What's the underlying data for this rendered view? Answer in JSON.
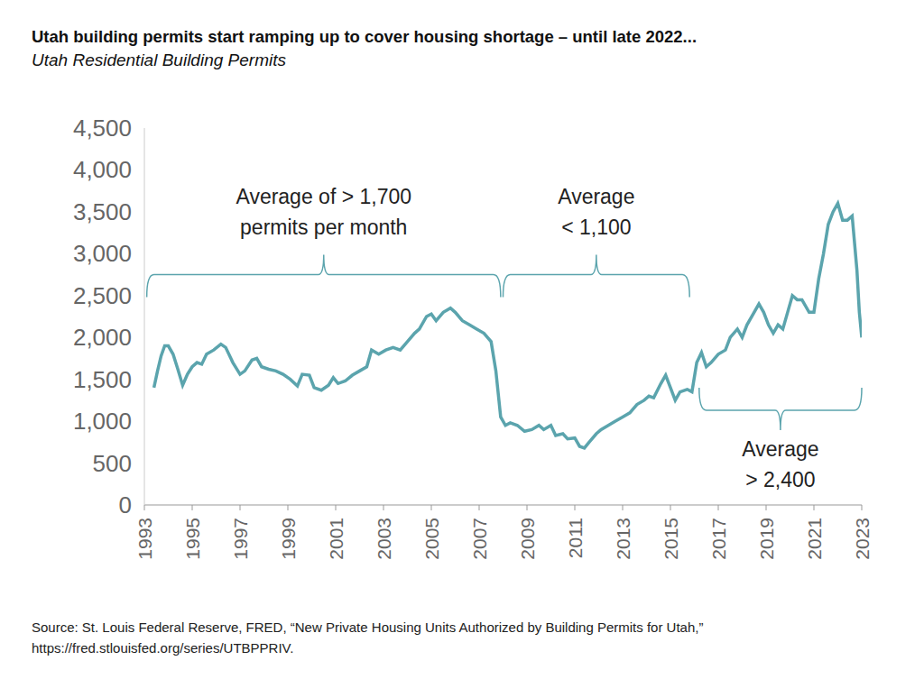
{
  "chart_data": {
    "type": "line",
    "title": "Utah building permits start ramping up to cover housing shortage – until late 2022...",
    "subtitle": "Utah Residential Building Permits",
    "source": [
      "Source: St. Louis Federal Reserve, FRED, “New Private Housing Units Authorized by Building Permits for Utah,”",
      "https://fred.stlouisfed.org/series/UTBPPRIV."
    ],
    "color": "#5ba4ad",
    "grid": false,
    "xlim": [
      1993,
      2023
    ],
    "xticks": [
      1993,
      1995,
      1997,
      1999,
      2001,
      2003,
      2005,
      2007,
      2009,
      2011,
      2013,
      2015,
      2017,
      2019,
      2021,
      2023
    ],
    "ylim": [
      0,
      4500
    ],
    "yticks": [
      0,
      500,
      {
        "value": 1000,
        "label": "1,000"
      },
      {
        "value": 1500,
        "label": "1,500"
      },
      {
        "value": 2000,
        "label": "2,000"
      },
      {
        "value": 2500,
        "label": "2,500"
      },
      {
        "value": 3000,
        "label": "3,000"
      },
      {
        "value": 3500,
        "label": "3,500"
      },
      {
        "value": 4000,
        "label": "4,000"
      },
      {
        "value": 4500,
        "label": "4,500"
      }
    ],
    "annotations": [
      {
        "text": [
          "Average of > 1,700",
          "permits per month"
        ],
        "x": [
          1993.1,
          2007.9
        ],
        "y": 2750
      },
      {
        "text": [
          "Average",
          "< 1,100"
        ],
        "x": [
          2008.0,
          2015.8
        ],
        "y": 2750
      },
      {
        "text": [
          "Average",
          "> 2,400"
        ],
        "x": [
          2016.2,
          2023
        ],
        "y": 1130
      }
    ],
    "x": [
      1993.4,
      1993.55,
      1993.7,
      1993.85,
      1994.0,
      1994.2,
      1994.4,
      1994.6,
      1994.8,
      1995.0,
      1995.2,
      1995.4,
      1995.6,
      1995.9,
      1996.2,
      1996.4,
      1996.7,
      1997.0,
      1997.2,
      1997.5,
      1997.7,
      1997.9,
      1998.2,
      1998.5,
      1998.8,
      1999.1,
      1999.4,
      1999.6,
      1999.9,
      2000.1,
      2000.4,
      2000.7,
      2000.9,
      2001.1,
      2001.4,
      2001.7,
      2002.0,
      2002.3,
      2002.5,
      2002.8,
      2003.1,
      2003.4,
      2003.7,
      2004.0,
      2004.3,
      2004.5,
      2004.8,
      2005.0,
      2005.2,
      2005.5,
      2005.8,
      2006.0,
      2006.3,
      2006.6,
      2006.9,
      2007.2,
      2007.5,
      2007.7,
      2007.9,
      2008.1,
      2008.3,
      2008.6,
      2008.9,
      2009.2,
      2009.5,
      2009.7,
      2010.0,
      2010.2,
      2010.5,
      2010.7,
      2011.0,
      2011.2,
      2011.4,
      2011.6,
      2011.9,
      2012.1,
      2012.4,
      2012.7,
      2013.0,
      2013.3,
      2013.6,
      2013.9,
      2014.1,
      2014.3,
      2014.6,
      2014.8,
      2015.0,
      2015.2,
      2015.4,
      2015.7,
      2015.9,
      2016.1,
      2016.3,
      2016.5,
      2016.7,
      2017.0,
      2017.3,
      2017.5,
      2017.8,
      2018.0,
      2018.2,
      2018.5,
      2018.7,
      2018.9,
      2019.1,
      2019.3,
      2019.5,
      2019.7,
      2019.9,
      2020.1,
      2020.3,
      2020.5,
      2020.8,
      2021.0,
      2021.2,
      2021.4,
      2021.6,
      2021.8,
      2022.0,
      2022.2,
      2022.4,
      2022.6,
      2022.8,
      2022.9,
      2023.0
    ],
    "values": [
      1400,
      1600,
      1780,
      1900,
      1900,
      1800,
      1620,
      1430,
      1560,
      1650,
      1700,
      1680,
      1800,
      1850,
      1920,
      1880,
      1700,
      1560,
      1600,
      1730,
      1750,
      1650,
      1620,
      1600,
      1560,
      1500,
      1420,
      1560,
      1550,
      1400,
      1370,
      1430,
      1520,
      1450,
      1480,
      1550,
      1600,
      1650,
      1850,
      1800,
      1850,
      1880,
      1850,
      1950,
      2050,
      2100,
      2250,
      2280,
      2200,
      2300,
      2350,
      2300,
      2200,
      2150,
      2100,
      2050,
      1950,
      1600,
      1050,
      950,
      980,
      950,
      880,
      900,
      950,
      900,
      950,
      830,
      850,
      790,
      800,
      700,
      680,
      750,
      850,
      900,
      950,
      1000,
      1050,
      1100,
      1200,
      1250,
      1300,
      1280,
      1450,
      1550,
      1400,
      1250,
      1350,
      1380,
      1350,
      1700,
      1820,
      1650,
      1700,
      1800,
      1850,
      2000,
      2100,
      2000,
      2150,
      2300,
      2400,
      2300,
      2150,
      2050,
      2150,
      2100,
      2300,
      2500,
      2450,
      2450,
      2300,
      2300,
      2700,
      3000,
      3350,
      3500,
      3600,
      3400,
      3400,
      3450,
      2800,
      2300,
      2000
    ]
  }
}
